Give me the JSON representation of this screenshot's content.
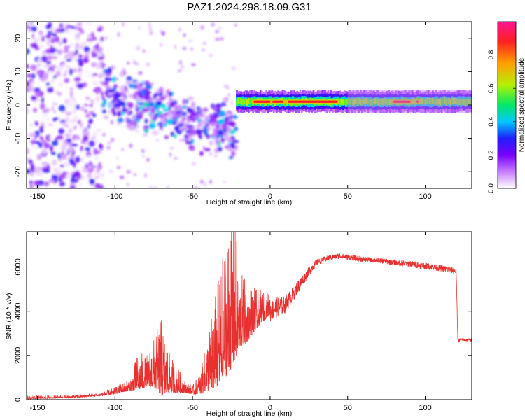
{
  "title": "PAZ1.2024.298.18.09.G31",
  "chart_data": [
    {
      "type": "heatmap",
      "xlabel": "Height of straight line (km)",
      "ylabel": "Frequency (Hz)",
      "xlim": [
        -157,
        130
      ],
      "ylim": [
        -25,
        25
      ],
      "xticks": [
        -150,
        -100,
        -50,
        0,
        50,
        100
      ],
      "yticks": [
        20,
        10,
        0,
        -10,
        -20
      ],
      "colorbar": {
        "label": "Normalized spectral amplitude",
        "range": [
          0,
          1
        ],
        "ticks": [
          0.0,
          0.2,
          0.4,
          0.6,
          0.8
        ],
        "colormap": [
          "#ffffff",
          "#c77dff",
          "#7a00ff",
          "#1f1fff",
          "#00c8ff",
          "#00e868",
          "#b4f000",
          "#ffa000",
          "#ff2020",
          "#ff1493"
        ]
      },
      "regions": [
        {
          "x_range": [
            -157,
            -108
          ],
          "frequency_spread": [
            -25,
            25
          ],
          "amplitude": [
            0.0,
            0.35
          ]
        },
        {
          "x_range": [
            -108,
            -22
          ],
          "frequency_trend": [
            [
              -108,
              4
            ],
            [
              -80,
              0
            ],
            [
              -60,
              -3
            ],
            [
              -45,
              -7
            ],
            [
              -30,
              -5
            ],
            [
              -22,
              -10
            ]
          ],
          "amplitude": [
            0.05,
            0.5
          ]
        },
        {
          "x_range": [
            -22,
            130
          ],
          "frequency_center": 1,
          "amplitude_peak": 0.9,
          "peaks_at": [
            -15,
            20,
            40,
            85,
            98
          ]
        }
      ]
    },
    {
      "type": "line",
      "xlabel": "Height of straight line (km)",
      "ylabel": "SNR (10 * v/v)",
      "xlim": [
        -157,
        130
      ],
      "ylim": [
        0,
        7600
      ],
      "xticks": [
        -150,
        -100,
        -50,
        0,
        50,
        100
      ],
      "yticks": [
        0,
        2000,
        4000,
        6000
      ],
      "color": "#e8312f",
      "envelope": {
        "x": [
          -157,
          -130,
          -110,
          -100,
          -90,
          -85,
          -80,
          -75,
          -70,
          -65,
          -60,
          -55,
          -50,
          -45,
          -40,
          -35,
          -30,
          -25,
          -22,
          -20,
          -15,
          -10,
          -5,
          0,
          5,
          10,
          15,
          20,
          25,
          30,
          35,
          40,
          45,
          50,
          60,
          70,
          80,
          90,
          100,
          110,
          118,
          120,
          121,
          125,
          130
        ],
        "baseline": [
          50,
          100,
          180,
          300,
          500,
          700,
          800,
          900,
          700,
          600,
          500,
          400,
          300,
          400,
          800,
          1200,
          1800,
          2500,
          2800,
          2900,
          3000,
          3400,
          3700,
          4000,
          4200,
          4300,
          4800,
          5300,
          5800,
          6200,
          6350,
          6450,
          6500,
          6450,
          6350,
          6300,
          6200,
          6150,
          6050,
          5950,
          5850,
          5800,
          2700,
          2700,
          2700
        ],
        "spread": [
          150,
          120,
          150,
          300,
          600,
          1800,
          1400,
          2200,
          3600,
          1800,
          1200,
          600,
          400,
          1000,
          2600,
          4400,
          6000,
          7400,
          6000,
          3500,
          2800,
          2000,
          1400,
          1000,
          900,
          800,
          700,
          550,
          400,
          300,
          250,
          250,
          250,
          250,
          250,
          250,
          250,
          300,
          300,
          300,
          300,
          200,
          150,
          150,
          150
        ]
      }
    }
  ]
}
